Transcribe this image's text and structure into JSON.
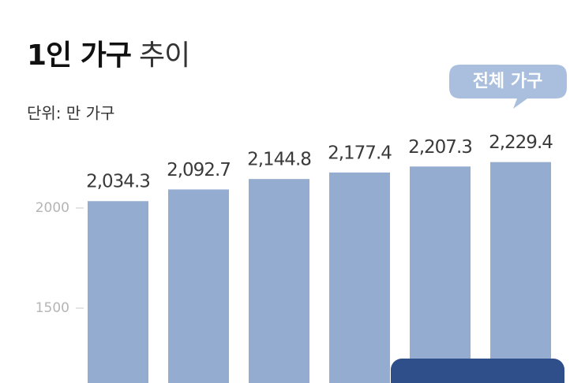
{
  "chart_data": {
    "type": "bar",
    "title": [
      "1인 가구",
      "추이"
    ],
    "subtitle": "단위: 만 가구",
    "annotation": "전체 가구",
    "values": [
      2034.3,
      2092.7,
      2144.8,
      2177.4,
      2207.3,
      2229.4
    ],
    "value_labels": [
      "2,034.3",
      "2,092.7",
      "2,144.8",
      "2,177.4",
      "2,207.3",
      "2,229.4"
    ],
    "color": "#93acd0",
    "ylim": [
      1126,
      3039
    ],
    "yticks": [
      1500,
      2000
    ]
  }
}
